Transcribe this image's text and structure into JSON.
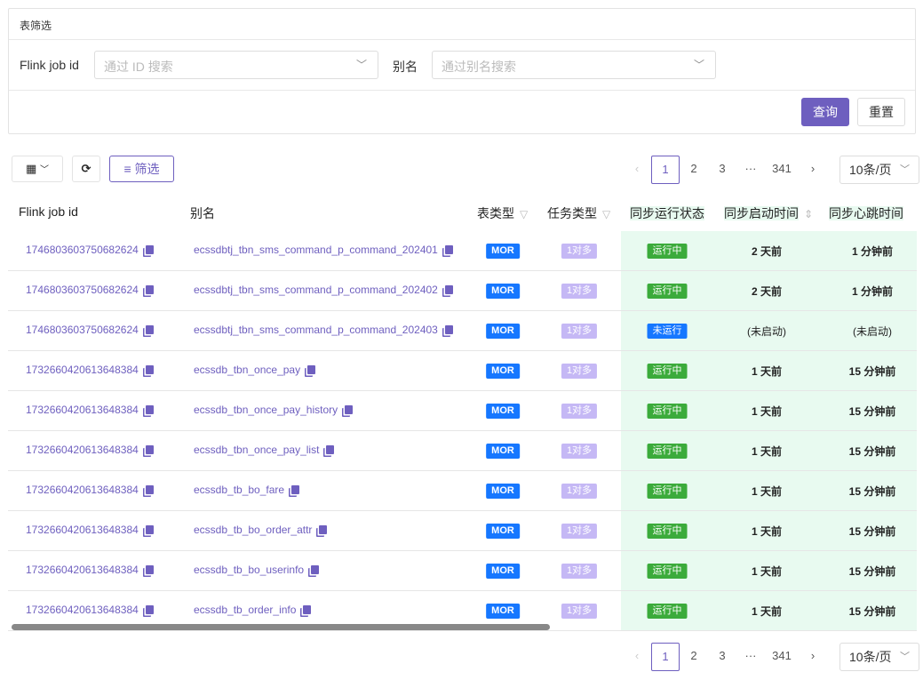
{
  "filter": {
    "title": "表筛选",
    "id_label": "Flink job id",
    "id_placeholder": "通过 ID 搜索",
    "alias_label": "别名",
    "alias_placeholder": "通过别名搜索",
    "query": "查询",
    "reset": "重置"
  },
  "toolbar": {
    "filter": "筛选"
  },
  "pagination": {
    "pages": [
      "1",
      "2",
      "3",
      "···",
      "341"
    ],
    "current": "1",
    "page_size": "10条/页"
  },
  "columns": [
    "Flink job id",
    "别名",
    "表类型",
    "任务类型",
    "同步运行状态",
    "同步启动时间",
    "同步心跳时间"
  ],
  "colors": {
    "accent": "#6e5fbf",
    "mor": "#1677ff",
    "task": "#c5b8f5",
    "running": "#3bab3b",
    "stopped": "#1677ff",
    "status_bg": "#e8faf0"
  },
  "rows": [
    {
      "id": "1746803603750682624",
      "alias": "ecssdbtj_tbn_sms_command_p_command_202401",
      "type": "MOR",
      "task": "1对多",
      "status": "运行中",
      "start": "2 天前",
      "heartbeat": "1 分钟前"
    },
    {
      "id": "1746803603750682624",
      "alias": "ecssdbtj_tbn_sms_command_p_command_202402",
      "type": "MOR",
      "task": "1对多",
      "status": "运行中",
      "start": "2 天前",
      "heartbeat": "1 分钟前"
    },
    {
      "id": "1746803603750682624",
      "alias": "ecssdbtj_tbn_sms_command_p_command_202403",
      "type": "MOR",
      "task": "1对多",
      "status": "未运行",
      "start": "(未启动)",
      "heartbeat": "(未启动)"
    },
    {
      "id": "1732660420613648384",
      "alias": "ecssdb_tbn_once_pay",
      "type": "MOR",
      "task": "1对多",
      "status": "运行中",
      "start": "1 天前",
      "heartbeat": "15 分钟前"
    },
    {
      "id": "1732660420613648384",
      "alias": "ecssdb_tbn_once_pay_history",
      "type": "MOR",
      "task": "1对多",
      "status": "运行中",
      "start": "1 天前",
      "heartbeat": "15 分钟前"
    },
    {
      "id": "1732660420613648384",
      "alias": "ecssdb_tbn_once_pay_list",
      "type": "MOR",
      "task": "1对多",
      "status": "运行中",
      "start": "1 天前",
      "heartbeat": "15 分钟前"
    },
    {
      "id": "1732660420613648384",
      "alias": "ecssdb_tb_bo_fare",
      "type": "MOR",
      "task": "1对多",
      "status": "运行中",
      "start": "1 天前",
      "heartbeat": "15 分钟前"
    },
    {
      "id": "1732660420613648384",
      "alias": "ecssdb_tb_bo_order_attr",
      "type": "MOR",
      "task": "1对多",
      "status": "运行中",
      "start": "1 天前",
      "heartbeat": "15 分钟前"
    },
    {
      "id": "1732660420613648384",
      "alias": "ecssdb_tb_bo_userinfo",
      "type": "MOR",
      "task": "1对多",
      "status": "运行中",
      "start": "1 天前",
      "heartbeat": "15 分钟前"
    },
    {
      "id": "1732660420613648384",
      "alias": "ecssdb_tb_order_info",
      "type": "MOR",
      "task": "1对多",
      "status": "运行中",
      "start": "1 天前",
      "heartbeat": "15 分钟前"
    }
  ]
}
